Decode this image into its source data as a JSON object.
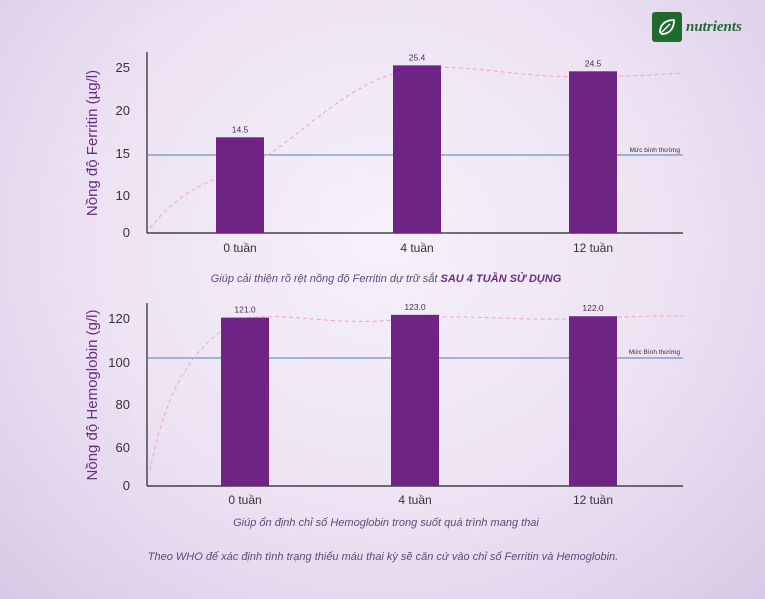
{
  "brand": {
    "name": "nutrients",
    "mark": "leaf-icon"
  },
  "colors": {
    "bar": "#6f2385",
    "ref_line": "#4f7fb0",
    "curve": "#f2a6b8",
    "axis": "#222222"
  },
  "chart_data": [
    {
      "type": "bar",
      "categories": [
        "0 tuần",
        "4 tuần",
        "12 tuần"
      ],
      "values": [
        14.5,
        25.4,
        24.5
      ],
      "value_labels": [
        "14.5",
        "25.4",
        "24.5"
      ],
      "ylabel": "Nồng độ Ferritin (µg/l)",
      "yticks": [
        "0",
        "10",
        "15",
        "20",
        "25"
      ],
      "ylim": [
        0,
        28
      ],
      "reference_line": {
        "value": 14.5,
        "label": "Mức bình thường"
      },
      "trend_curve": "dashed",
      "caption": "Giúp cải thiện rõ rệt nồng độ Ferritin dự trữ sắt",
      "caption_emphasis": "SAU 4 TUẦN SỬ DỤNG"
    },
    {
      "type": "bar",
      "categories": [
        "0 tuần",
        "4 tuần",
        "12 tuần"
      ],
      "values": [
        121.0,
        123.0,
        122.0
      ],
      "value_labels": [
        "121.0",
        "123.0",
        "122.0"
      ],
      "ylabel": "Nồng độ Hemoglobin (g/l)",
      "yticks": [
        "0",
        "60",
        "80",
        "100",
        "120"
      ],
      "ylim": [
        0,
        130
      ],
      "reference_line": {
        "value": 102,
        "label": "Mức Bình thường"
      },
      "trend_curve": "dashed",
      "caption": "Giúp ổn định chỉ số Hemoglobin trong suốt quá trình mang thai"
    }
  ],
  "footnote": "Theo WHO để xác định tình trạng thiếu máu thai kỳ sẽ căn cứ vào chỉ số Ferritin và Hemoglobin."
}
